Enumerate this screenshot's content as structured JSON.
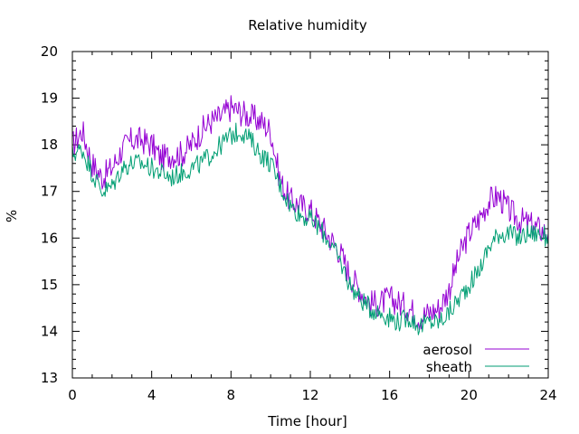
{
  "chart_data": {
    "type": "line",
    "title": "Relative humidity",
    "xlabel": "Time [hour]",
    "ylabel": "%",
    "xlim": [
      0,
      24
    ],
    "ylim": [
      13,
      20
    ],
    "xticks": [
      0,
      4,
      8,
      12,
      16,
      20,
      24
    ],
    "xtick_labels": [
      "0",
      "4",
      "8",
      "12",
      "16",
      "20",
      "24"
    ],
    "yticks": [
      13,
      14,
      15,
      16,
      17,
      18,
      19,
      20
    ],
    "ytick_labels": [
      "13",
      "14",
      "15",
      "16",
      "17",
      "18",
      "19",
      "20"
    ],
    "grid": false,
    "legend_position": "bottom-right",
    "series": [
      {
        "name": "aerosol",
        "color": "#9400d3",
        "x": [
          0,
          0.5,
          1,
          1.5,
          2,
          2.5,
          3,
          3.5,
          4,
          4.5,
          5,
          5.5,
          6,
          6.5,
          7,
          7.5,
          8,
          8.5,
          9,
          9.5,
          10,
          10.5,
          11,
          11.5,
          12,
          12.5,
          13,
          13.5,
          14,
          14.5,
          15,
          15.5,
          16,
          16.5,
          17,
          17.5,
          18,
          18.5,
          19,
          19.5,
          20,
          20.5,
          21,
          21.5,
          22,
          22.5,
          23,
          23.5,
          24
        ],
        "y": [
          18.0,
          18.3,
          17.6,
          17.3,
          17.5,
          17.9,
          18.1,
          18.1,
          18.0,
          17.7,
          17.8,
          17.8,
          18.0,
          18.3,
          18.5,
          18.6,
          18.8,
          18.7,
          18.6,
          18.5,
          18.3,
          17.2,
          16.8,
          16.7,
          16.6,
          16.3,
          16.0,
          15.7,
          15.2,
          14.9,
          14.6,
          14.6,
          14.7,
          14.6,
          14.5,
          14.3,
          14.4,
          14.5,
          14.9,
          15.6,
          16.1,
          16.4,
          16.8,
          16.9,
          16.6,
          16.4,
          16.3,
          16.2,
          16.1
        ]
      },
      {
        "name": "sheath",
        "color": "#009e73",
        "x": [
          0,
          0.5,
          1,
          1.5,
          2,
          2.5,
          3,
          3.5,
          4,
          4.5,
          5,
          5.5,
          6,
          6.5,
          7,
          7.5,
          8,
          8.5,
          9,
          9.5,
          10,
          10.5,
          11,
          11.5,
          12,
          12.5,
          13,
          13.5,
          14,
          14.5,
          15,
          15.5,
          16,
          16.5,
          17,
          17.5,
          18,
          18.5,
          19,
          19.5,
          20,
          20.5,
          21,
          21.5,
          22,
          22.5,
          23,
          23.5,
          24
        ],
        "y": [
          17.8,
          17.9,
          17.4,
          17.0,
          17.1,
          17.5,
          17.6,
          17.6,
          17.5,
          17.4,
          17.3,
          17.4,
          17.5,
          17.6,
          17.8,
          18.0,
          18.2,
          18.3,
          18.1,
          17.8,
          17.6,
          17.1,
          16.7,
          16.5,
          16.4,
          16.2,
          15.9,
          15.5,
          15.0,
          14.7,
          14.5,
          14.4,
          14.3,
          14.2,
          14.3,
          14.1,
          14.2,
          14.2,
          14.4,
          14.7,
          15.0,
          15.3,
          15.8,
          16.1,
          16.1,
          16.0,
          16.1,
          16.1,
          16.0
        ]
      }
    ]
  }
}
